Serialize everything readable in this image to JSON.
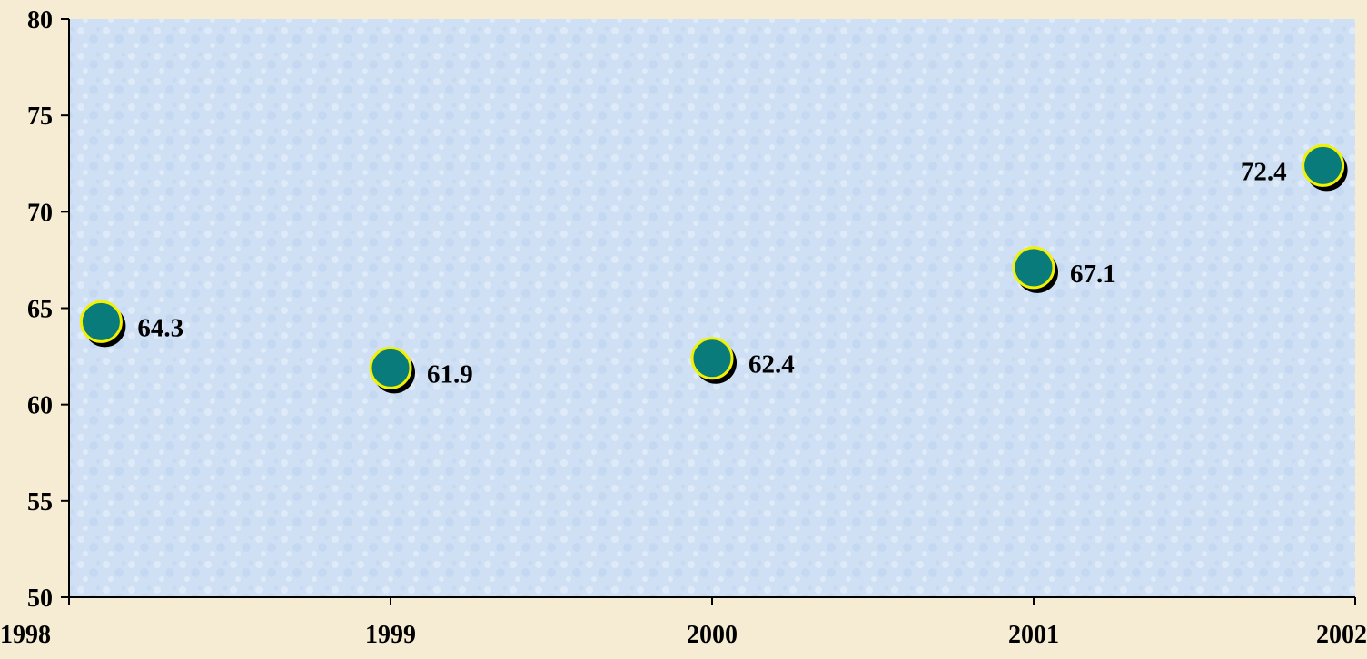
{
  "chart_data": {
    "type": "scatter",
    "title": "",
    "xlabel": "",
    "ylabel": "",
    "xlim": [
      1998,
      2002
    ],
    "ylim": [
      50,
      80
    ],
    "x_ticks": [
      "1998",
      "1999",
      "2000",
      "2001",
      "2002"
    ],
    "y_ticks": [
      "50",
      "55",
      "60",
      "65",
      "70",
      "75",
      "80"
    ],
    "grid": false,
    "legend": "none",
    "series": [
      {
        "points": [
          {
            "x": 1998.1,
            "y": 64.3,
            "label": "64.3"
          },
          {
            "x": 1999.0,
            "y": 61.9,
            "label": "61.9"
          },
          {
            "x": 2000.0,
            "y": 62.4,
            "label": "62.4"
          },
          {
            "x": 2001.0,
            "y": 67.1,
            "label": "67.1"
          },
          {
            "x": 2001.9,
            "y": 72.4,
            "label": "72.4"
          }
        ]
      }
    ],
    "colors": {
      "page_background": "#f6ecd4",
      "plot_background": "#cfe0f4",
      "marker_fill": "#0a7b7b",
      "marker_outline": "#f2f200",
      "marker_shadow": "#000000"
    }
  }
}
